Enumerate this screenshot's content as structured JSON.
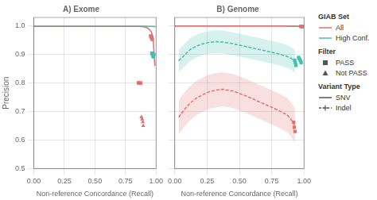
{
  "chart_data": {
    "type": "line",
    "panels": [
      {
        "title": "A) Exome",
        "xlabel": "Non-reference Concordance (Recall)",
        "ylabel": "Precision",
        "xlim": [
          0.0,
          1.0
        ],
        "ylim": [
          0.5,
          1.03
        ],
        "xticks": [
          {
            "value": 0.0,
            "label": "0.00"
          },
          0.25,
          {
            "value": 0.5,
            "label": "0.50"
          },
          0.75,
          {
            "value": 1.0,
            "label": "1.00"
          }
        ],
        "yticks": [
          0.5,
          0.6,
          0.7,
          0.8,
          0.9,
          {
            "value": 1.0,
            "label": "1.0"
          }
        ],
        "grid": true,
        "series": [
          {
            "type": "line",
            "color": "#e07070",
            "line_style": "solid",
            "x": [
              0.0,
              0.5,
              0.8,
              0.85,
              0.88,
              0.9,
              0.92,
              0.94,
              0.96,
              0.975,
              0.99
            ],
            "values": [
              0.999,
              0.999,
              0.999,
              0.999,
              0.998,
              0.997,
              0.995,
              0.99,
              0.98,
              0.962,
              0.86
            ]
          },
          {
            "type": "line",
            "color": "#45bfb0",
            "line_style": "solid",
            "x": [
              0.0,
              0.5,
              0.8,
              0.85,
              0.88,
              0.9,
              0.92,
              0.94,
              0.96,
              0.975,
              0.985,
              0.995
            ],
            "values": [
              0.9995,
              0.9995,
              0.9995,
              0.9995,
              0.9994,
              0.9993,
              0.9992,
              0.999,
              0.9988,
              0.9985,
              0.9982,
              0.9975
            ]
          },
          {
            "type": "scatter",
            "color": "#e07070",
            "marker": "square",
            "x": [
              0.955,
              0.963,
              0.968
            ],
            "values": [
              0.965,
              0.958,
              0.953
            ]
          },
          {
            "type": "scatter",
            "color": "#45bfb0",
            "marker": "square",
            "x": [
              0.965,
              0.97,
              0.975,
              0.978,
              0.981
            ],
            "values": [
              0.905,
              0.9,
              0.896,
              0.892,
              0.9
            ]
          },
          {
            "type": "scatter",
            "color": "#e07070",
            "marker": "square",
            "x": [
              0.855,
              0.865,
              0.875
            ],
            "values": [
              0.801,
              0.8,
              0.8
            ]
          },
          {
            "type": "scatter",
            "color": "#e07070",
            "marker": "triangle",
            "x": [
              0.88,
              0.886,
              0.891,
              0.895
            ],
            "values": [
              0.681,
              0.673,
              0.663,
              0.65
            ]
          }
        ]
      },
      {
        "title": "B) Genome",
        "xlabel": "Non-reference Concordance (Recall)",
        "xlim": [
          0.0,
          1.0
        ],
        "ylim": [
          0.5,
          1.03
        ],
        "xticks": [
          {
            "value": 0.0,
            "label": "0.00"
          },
          0.25,
          {
            "value": 0.5,
            "label": "0.50"
          },
          0.75,
          {
            "value": 1.0,
            "label": "1.00"
          }
        ],
        "yticks": [
          0.5,
          0.6,
          0.7,
          0.8,
          0.9,
          {
            "value": 1.0,
            "label": "1.0"
          }
        ],
        "grid": true,
        "tick_labels": "x",
        "series": [
          {
            "type": "line",
            "color": "#e07070",
            "line_style": "solid",
            "x": [
              0.0,
              0.5,
              0.8,
              0.85,
              0.88,
              0.9,
              0.92,
              0.94,
              0.96,
              0.975,
              0.985,
              0.993
            ],
            "values": [
              0.9998,
              0.9998,
              0.9998,
              0.9998,
              0.9997,
              0.9996,
              0.9995,
              0.9993,
              0.999,
              0.9985,
              0.9975,
              0.996
            ]
          },
          {
            "type": "line",
            "color": "#45bfb0",
            "line_style": "solid",
            "x": [
              0.0,
              0.5,
              0.8,
              0.85,
              0.88,
              0.9,
              0.92,
              0.94,
              0.96,
              0.975,
              0.985,
              0.995
            ],
            "values": [
              0.9998,
              0.9998,
              0.9998,
              0.9998,
              0.9997,
              0.9996,
              0.9995,
              0.9993,
              0.999,
              0.9985,
              0.9978,
              0.9972
            ]
          },
          {
            "type": "line",
            "color": "#e07070",
            "line_style": "dashed",
            "x": [
              0.03,
              0.08,
              0.12,
              0.17,
              0.22,
              0.27,
              0.32,
              0.37,
              0.45,
              0.55,
              0.65,
              0.75,
              0.82,
              0.87,
              0.9,
              0.93
            ],
            "values": [
              0.68,
              0.71,
              0.73,
              0.748,
              0.76,
              0.77,
              0.775,
              0.778,
              0.772,
              0.755,
              0.735,
              0.715,
              0.7,
              0.688,
              0.672,
              0.65
            ],
            "lo": [
              0.62,
              0.65,
              0.67,
              0.688,
              0.7,
              0.71,
              0.715,
              0.718,
              0.712,
              0.695,
              0.675,
              0.655,
              0.64,
              0.628,
              0.612,
              0.59
            ],
            "hi": [
              0.74,
              0.77,
              0.79,
              0.808,
              0.82,
              0.83,
              0.835,
              0.838,
              0.832,
              0.815,
              0.795,
              0.775,
              0.76,
              0.748,
              0.732,
              0.71
            ]
          },
          {
            "type": "line",
            "color": "#45bfb0",
            "line_style": "dashed",
            "x": [
              0.03,
              0.08,
              0.12,
              0.17,
              0.22,
              0.27,
              0.32,
              0.37,
              0.45,
              0.55,
              0.65,
              0.75,
              0.82,
              0.87,
              0.9,
              0.93
            ],
            "values": [
              0.878,
              0.9,
              0.918,
              0.93,
              0.938,
              0.943,
              0.945,
              0.944,
              0.938,
              0.928,
              0.918,
              0.908,
              0.9,
              0.893,
              0.887,
              0.875
            ],
            "lo": [
              0.838,
              0.86,
              0.878,
              0.89,
              0.898,
              0.903,
              0.905,
              0.904,
              0.898,
              0.888,
              0.878,
              0.868,
              0.86,
              0.853,
              0.847,
              0.835
            ],
            "hi": [
              0.918,
              0.94,
              0.958,
              0.97,
              0.978,
              0.983,
              0.985,
              0.984,
              0.978,
              0.968,
              0.958,
              0.948,
              0.94,
              0.933,
              0.927,
              0.915
            ]
          },
          {
            "type": "scatter",
            "color": "#e07070",
            "marker": "square",
            "x": [
              0.975,
              0.98,
              0.983,
              0.986
            ],
            "values": [
              0.9988,
              0.9985,
              0.9982,
              0.9978
            ]
          },
          {
            "type": "scatter",
            "color": "#45bfb0",
            "marker": "square",
            "x": [
              0.958,
              0.963,
              0.968,
              0.973,
              0.978
            ],
            "values": [
              0.89,
              0.886,
              0.882,
              0.877,
              0.872
            ]
          },
          {
            "type": "scatter",
            "color": "#45bfb0",
            "marker": "square",
            "x": [
              0.928,
              0.933,
              0.938
            ],
            "values": [
              0.88,
              0.872,
              0.862
            ]
          },
          {
            "type": "scatter",
            "color": "#e07070",
            "marker": "square",
            "x": [
              0.92,
              0.925,
              0.93
            ],
            "values": [
              0.662,
              0.645,
              0.63
            ]
          }
        ]
      }
    ],
    "legend_groups": [
      {
        "title": "GIAB Set",
        "entries": [
          {
            "label": "All",
            "color": "#e07070",
            "line_style": "solid"
          },
          {
            "label": "High Conf.",
            "color": "#45bfb0",
            "line_style": "solid"
          }
        ]
      },
      {
        "title": "Filter",
        "entries": [
          {
            "label": "PASS",
            "color": "#555555",
            "marker": "square"
          },
          {
            "label": "Not PASS",
            "color": "#555555",
            "marker": "triangle"
          }
        ]
      },
      {
        "title": "Variant Type",
        "entries": [
          {
            "label": "SNV",
            "color": "#555555",
            "line_style": "solid"
          },
          {
            "label": "Indel",
            "color": "#555555",
            "line_style": "dashed",
            "marker": "plus"
          }
        ]
      }
    ]
  }
}
